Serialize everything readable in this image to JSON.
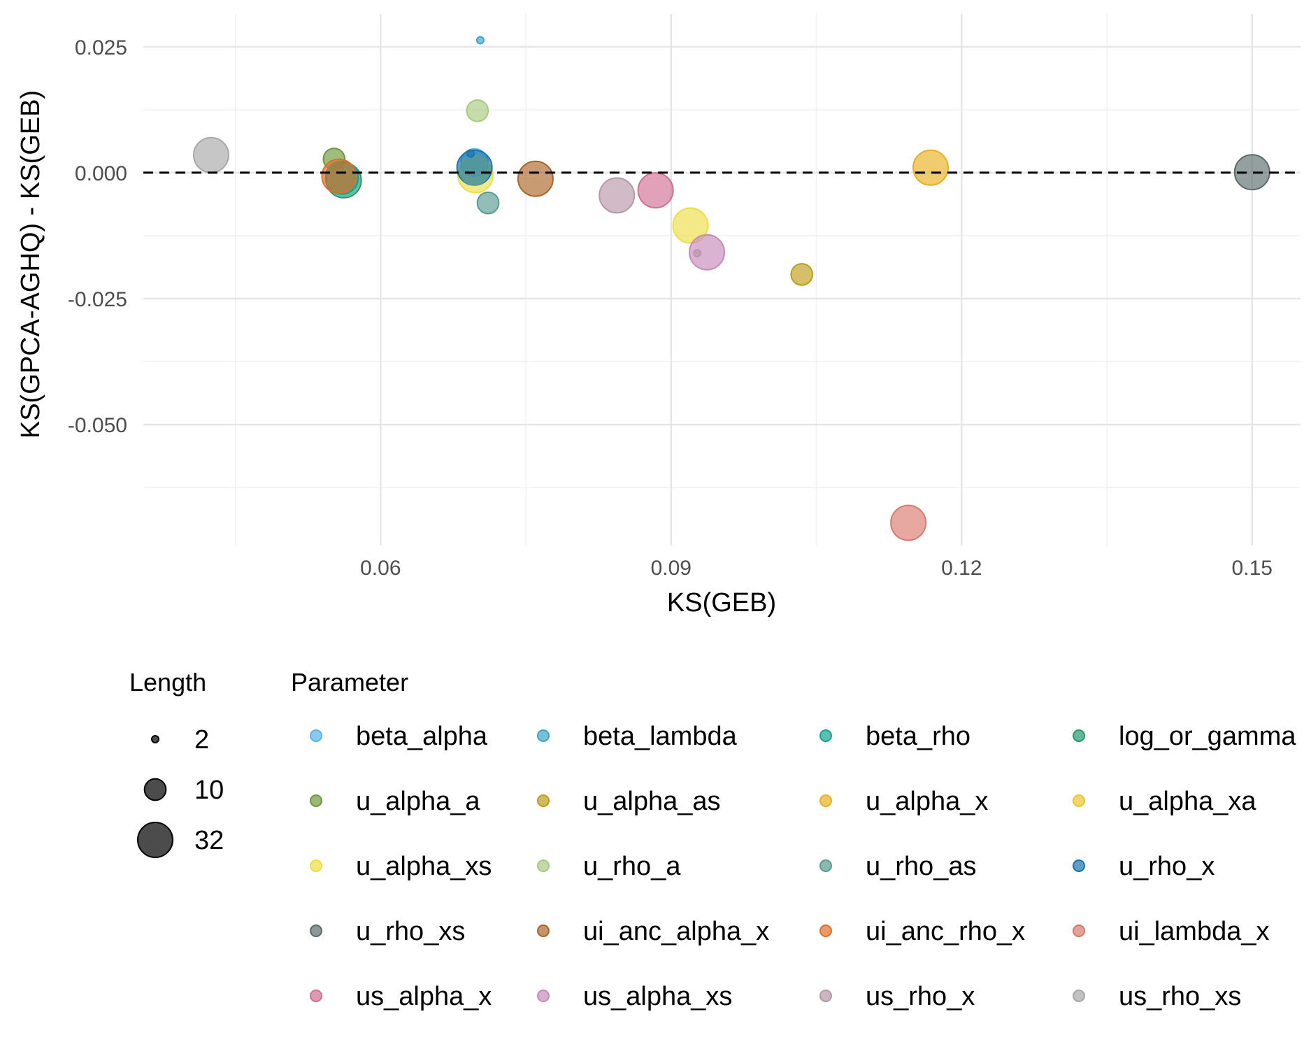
{
  "chart_data": {
    "type": "scatter",
    "xlabel": "KS(GEB)",
    "ylabel": "KS(GPCA-AGHQ) - KS(GEB)",
    "xlim": [
      0.0355,
      0.155
    ],
    "ylim": [
      -0.074,
      0.0315
    ],
    "x_ticks": [
      0.06,
      0.09,
      0.12,
      0.15
    ],
    "x_tick_labels": [
      "0.06",
      "0.09",
      "0.12",
      "0.15"
    ],
    "y_ticks": [
      0.025,
      0.0,
      -0.025,
      -0.05
    ],
    "y_tick_labels": [
      "0.025",
      "0.000",
      "-0.025",
      "-0.050"
    ],
    "grid": true,
    "reference_line": {
      "y": 0,
      "style": "dashed"
    },
    "size_legend": {
      "title": "Length",
      "entries": [
        {
          "label": "2",
          "value": 2
        },
        {
          "label": "10",
          "value": 10
        },
        {
          "label": "32",
          "value": 32
        }
      ]
    },
    "color_legend": {
      "title": "Parameter",
      "placement": "bottom",
      "entries": [
        {
          "name": "beta_alpha",
          "color": "#56B4E9"
        },
        {
          "name": "beta_lambda",
          "color": "#3AA6C4"
        },
        {
          "name": "beta_rho",
          "color": "#14A58E"
        },
        {
          "name": "log_or_gamma",
          "color": "#229A6A"
        },
        {
          "name": "u_alpha_a",
          "color": "#6C9A3A"
        },
        {
          "name": "u_alpha_as",
          "color": "#BE9C19"
        },
        {
          "name": "u_alpha_x",
          "color": "#E8B020"
        },
        {
          "name": "u_alpha_xa",
          "color": "#EBC530"
        },
        {
          "name": "u_alpha_xs",
          "color": "#EEDD46"
        },
        {
          "name": "u_rho_a",
          "color": "#A7CA7E"
        },
        {
          "name": "u_rho_as",
          "color": "#599B92"
        },
        {
          "name": "u_rho_x",
          "color": "#1B73AE"
        },
        {
          "name": "u_rho_xs",
          "color": "#5B6B6B"
        },
        {
          "name": "ui_anc_alpha_x",
          "color": "#AA6628"
        },
        {
          "name": "ui_anc_rho_x",
          "color": "#DE6E28"
        },
        {
          "name": "ui_lambda_x",
          "color": "#D97A6E"
        },
        {
          "name": "us_alpha_x",
          "color": "#D16F92"
        },
        {
          "name": "us_alpha_xs",
          "color": "#C68BBB"
        },
        {
          "name": "us_rho_x",
          "color": "#B797A7"
        },
        {
          "name": "us_rho_xs",
          "color": "#A8A8A8"
        }
      ]
    },
    "points": [
      {
        "series": "us_rho_xs",
        "x": 0.0425,
        "y": 0.0035,
        "size": 32
      },
      {
        "series": "u_alpha_a",
        "x": 0.0552,
        "y": 0.0027,
        "size": 10
      },
      {
        "series": "log_or_gamma",
        "x": 0.0562,
        "y": -0.0015,
        "size": 32
      },
      {
        "series": "beta_rho",
        "x": 0.056,
        "y": -0.001,
        "size": 28
      },
      {
        "series": "ui_anc_rho_x",
        "x": 0.0557,
        "y": -0.0007,
        "size": 30
      },
      {
        "series": "u_alpha_xs",
        "x": 0.0698,
        "y": -0.0005,
        "size": 32
      },
      {
        "series": "beta_alpha",
        "x": 0.0697,
        "y": 0.002,
        "size": 18
      },
      {
        "series": "u_rho_x",
        "x": 0.0697,
        "y": 0.001,
        "size": 32
      },
      {
        "series": "u_rho_as",
        "x": 0.0697,
        "y": 0.0005,
        "size": 22
      },
      {
        "series": "u_rho_x",
        "x": 0.0693,
        "y": 0.0038,
        "size": 2
      },
      {
        "series": "beta_lambda",
        "x": 0.0703,
        "y": 0.0263,
        "size": 2
      },
      {
        "series": "u_rho_a",
        "x": 0.07,
        "y": 0.0123,
        "size": 10
      },
      {
        "series": "u_rho_as",
        "x": 0.0711,
        "y": -0.006,
        "size": 10
      },
      {
        "series": "ui_anc_alpha_x",
        "x": 0.076,
        "y": -0.0012,
        "size": 32
      },
      {
        "series": "us_rho_x",
        "x": 0.0844,
        "y": -0.0045,
        "size": 32
      },
      {
        "series": "us_alpha_x",
        "x": 0.0884,
        "y": -0.0035,
        "size": 32
      },
      {
        "series": "u_alpha_xs",
        "x": 0.092,
        "y": -0.0105,
        "size": 32
      },
      {
        "series": "us_alpha_xs",
        "x": 0.0937,
        "y": -0.0158,
        "size": 32
      },
      {
        "series": "us_rho_x",
        "x": 0.0927,
        "y": -0.016,
        "size": 2
      },
      {
        "series": "u_alpha_as",
        "x": 0.1035,
        "y": -0.0202,
        "size": 10
      },
      {
        "series": "u_alpha_x",
        "x": 0.1168,
        "y": 0.001,
        "size": 32
      },
      {
        "series": "ui_lambda_x",
        "x": 0.1145,
        "y": -0.0695,
        "size": 32
      },
      {
        "series": "u_rho_xs",
        "x": 0.15,
        "y": 0.0001,
        "size": 32
      }
    ]
  }
}
